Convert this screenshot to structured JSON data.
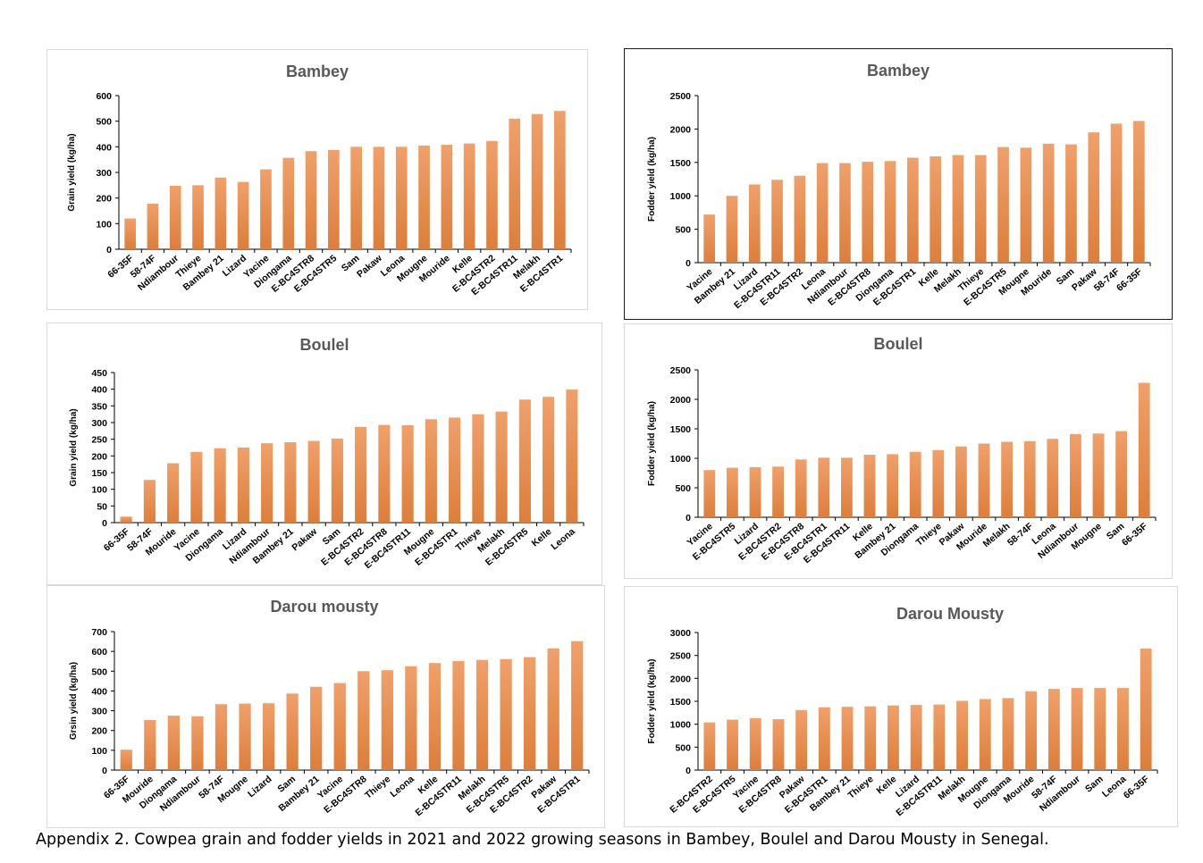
{
  "caption": "Appendix 2. Cowpea grain and fodder yields in 2021 and 2022 growing seasons in Bambey, Boulel and Darou Mousty in Senegal.",
  "colors": {
    "bar_top": "#f0a06a",
    "bar_bottom": "#dd7e3b",
    "axis": "#000000",
    "title": "#595959"
  },
  "chart_data": [
    {
      "type": "bar",
      "title": "Bambey",
      "ylabel": "Grain yield (kg/ha)",
      "ylim": [
        0,
        600
      ],
      "yticks": [
        0,
        100,
        200,
        300,
        400,
        500,
        600
      ],
      "categories": [
        "66-35F",
        "58-74F",
        "Ndiambour",
        "Thieye",
        "Bambey 21",
        "Lizard",
        "Yacine",
        "Diongama",
        "E-BC4STR8",
        "E-BC4STR5",
        "Sam",
        "Pakaw",
        "Leona",
        "Mougne",
        "Mouride",
        "Kelle",
        "E-BC4STR2",
        "E-BC4STR11",
        "Melakh",
        "E-BC4STR1"
      ],
      "values": [
        120,
        178,
        248,
        250,
        280,
        263,
        312,
        357,
        383,
        388,
        400,
        400,
        400,
        405,
        408,
        413,
        423,
        510,
        528,
        540
      ]
    },
    {
      "type": "bar",
      "title": "Bambey",
      "ylabel": "Fodder yield (kg/ha)",
      "ylim": [
        0,
        2500
      ],
      "yticks": [
        0,
        500,
        1000,
        1500,
        2000,
        2500
      ],
      "categories": [
        "Yacine",
        "Bambey 21",
        "Lizard",
        "E-BC4STR11",
        "E-BC4STR2",
        "Leona",
        "Ndiambour",
        "E-BC4STR8",
        "Diongama",
        "E-BC4STR1",
        "Kelle",
        "Melakh",
        "Thieye",
        "E-BC4STR5",
        "Mougne",
        "Mouride",
        "Sam",
        "Pakaw",
        "58-74F",
        "66-35F"
      ],
      "values": [
        720,
        1000,
        1170,
        1240,
        1300,
        1490,
        1490,
        1510,
        1520,
        1570,
        1590,
        1610,
        1610,
        1730,
        1720,
        1780,
        1770,
        1950,
        2080,
        2120
      ]
    },
    {
      "type": "bar",
      "title": "Boulel",
      "ylabel": "Grain yield (kg/ha)",
      "ylim": [
        0,
        450
      ],
      "yticks": [
        0,
        50,
        100,
        150,
        200,
        250,
        300,
        350,
        400,
        450
      ],
      "categories": [
        "66-35F",
        "58-74F",
        "Mouride",
        "Yacine",
        "Diongama",
        "Lizard",
        "Ndiambour",
        "Bambey 21",
        "Pakaw",
        "Sam",
        "E-BC4STR2",
        "E-BC4STR8",
        "E-BC4STR11",
        "Mougne",
        "E-BC4STR1",
        "Thieye",
        "Melakh",
        "E-BC4STR5",
        "Kelle",
        "Leona"
      ],
      "values": [
        18,
        128,
        178,
        212,
        223,
        225,
        238,
        241,
        245,
        252,
        287,
        293,
        292,
        310,
        315,
        325,
        333,
        369,
        377,
        399
      ]
    },
    {
      "type": "bar",
      "title": "Boulel",
      "ylabel": "Fodder yield (kg/ha)",
      "ylim": [
        0,
        2500
      ],
      "yticks": [
        0,
        500,
        1000,
        1500,
        2000,
        2500
      ],
      "categories": [
        "Yacine",
        "E-BC4STR5",
        "Lizard",
        "E-BC4STR2",
        "E-BC4STR8",
        "E-BC4STR1",
        "E-BC4STR11",
        "Kelle",
        "Bambey 21",
        "Diongama",
        "Thieye",
        "Pakaw",
        "Mouride",
        "Melakh",
        "58-74F",
        "Leona",
        "Ndiambour",
        "Mougne",
        "Sam",
        "66-35F"
      ],
      "values": [
        800,
        840,
        850,
        860,
        980,
        1010,
        1010,
        1060,
        1070,
        1110,
        1140,
        1200,
        1250,
        1280,
        1290,
        1330,
        1410,
        1420,
        1460,
        2280
      ]
    },
    {
      "type": "bar",
      "title": "Darou mousty",
      "ylabel": "Grsin yield (kg/ha)",
      "ylim": [
        0,
        700
      ],
      "yticks": [
        0,
        100,
        200,
        300,
        400,
        500,
        600,
        700
      ],
      "categories": [
        "66-35F",
        "Mouride",
        "Diongama",
        "Ndiambour",
        "58-74F",
        "Mougne",
        "Lizard",
        "Sam",
        "Bambey 21",
        "Yacine",
        "E-BC4STR8",
        "Thieye",
        "Leona",
        "Kelle",
        "E-BC4STR11",
        "Melakh",
        "E-BC4STR5",
        "E-BC4STR2",
        "Pakaw",
        "E-BC4STR1"
      ],
      "values": [
        103,
        253,
        275,
        272,
        333,
        336,
        338,
        387,
        421,
        440,
        500,
        505,
        525,
        541,
        551,
        557,
        561,
        571,
        615,
        652
      ]
    },
    {
      "type": "bar",
      "title": "Darou Mousty",
      "ylabel": "Fodder yield (kg/ha)",
      "ylim": [
        0,
        3000
      ],
      "yticks": [
        0,
        500,
        1000,
        1500,
        2000,
        2500,
        3000
      ],
      "categories": [
        "E-BC4STR2",
        "E-BC4STR5",
        "Yacine",
        "E-BC4STR8",
        "Pakaw",
        "E-BC4STR1",
        "Bambey 21",
        "Thieye",
        "Kelle",
        "Lizard",
        "E-BC4STR11",
        "Melakh",
        "Mougne",
        "Diongama",
        "Mouride",
        "58-74F",
        "Ndiambour",
        "Sam",
        "Leona",
        "66-35F"
      ],
      "values": [
        1040,
        1100,
        1130,
        1110,
        1310,
        1370,
        1380,
        1390,
        1410,
        1420,
        1430,
        1510,
        1550,
        1570,
        1720,
        1770,
        1790,
        1790,
        1790,
        2650
      ]
    }
  ]
}
